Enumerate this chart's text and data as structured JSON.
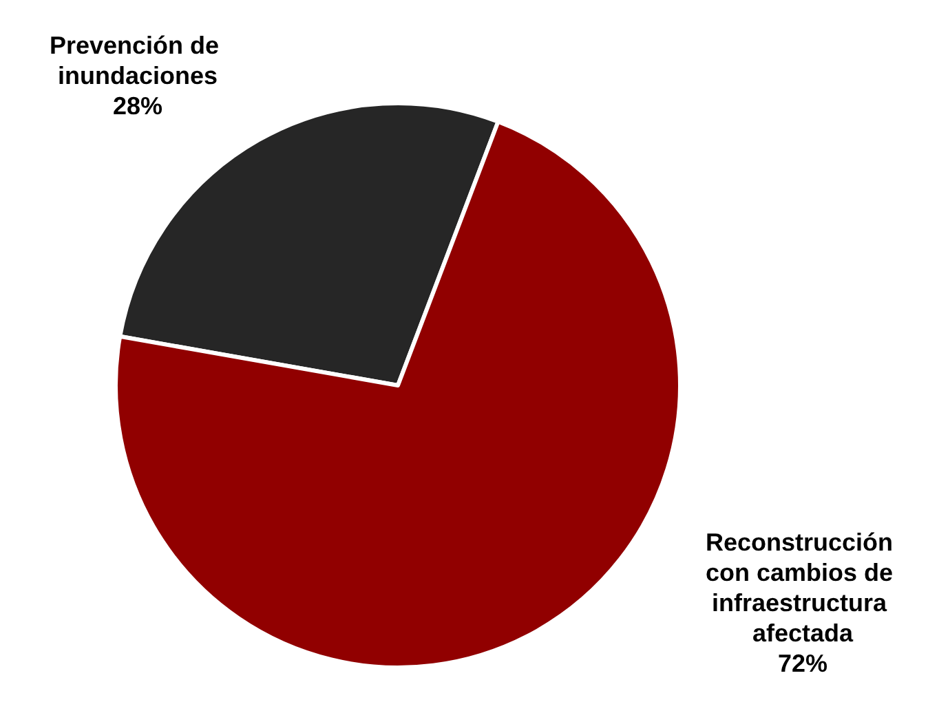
{
  "chart_data": {
    "type": "pie",
    "categories": [
      "Prevención de inundaciones",
      "Reconstrucción con cambios de infraestructura afectada"
    ],
    "values": [
      28,
      72
    ],
    "colors": [
      "#262626",
      "#910000"
    ],
    "value_labels": [
      "28%",
      "72%"
    ]
  }
}
